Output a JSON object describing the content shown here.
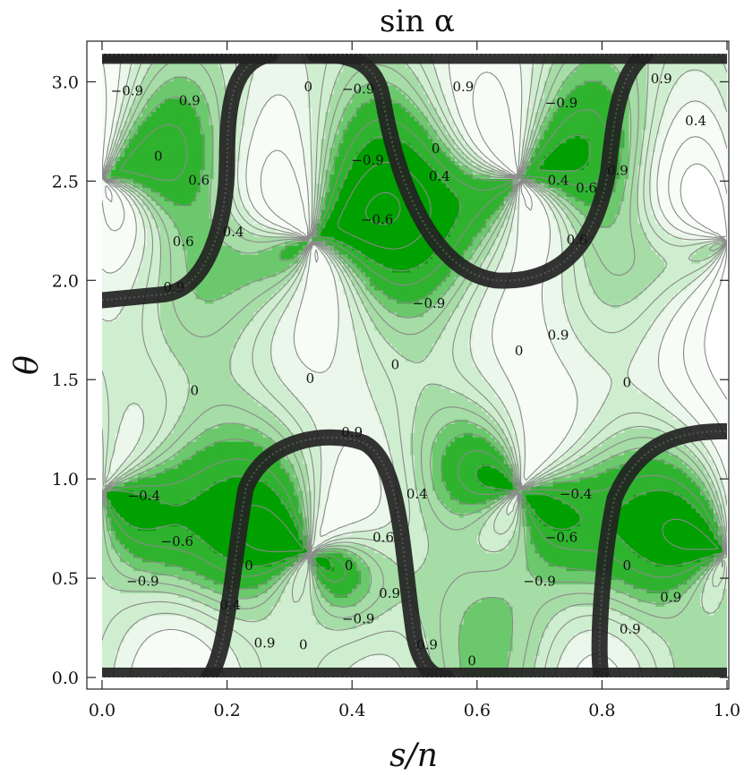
{
  "chart_data": {
    "type": "heatmap",
    "subtype": "contour",
    "title": "sin α",
    "xlabel": "s/n",
    "ylabel": "θ",
    "xlim": [
      0,
      1
    ],
    "ylim": [
      0,
      3.14159
    ],
    "x_ticks": [
      "0.0",
      "0.2",
      "0.4",
      "0.6",
      "0.8",
      "1.0"
    ],
    "y_ticks": [
      "0.0",
      "0.5",
      "1.0",
      "1.5",
      "2.0",
      "2.5",
      "3.0"
    ],
    "contour_levels": [
      -0.9,
      -0.6,
      -0.4,
      0,
      0.4,
      0.6,
      0.9
    ],
    "colors": {
      "most_negative": "#00a000",
      "negative": "#2fb32f",
      "mid_negative": "#6cc86c",
      "mid": "#a6dca6",
      "mid_positive": "#cfeecf",
      "positive": "#eaf7ea",
      "most_positive": "#f7fcf7",
      "singular_band": "#222222",
      "contour_line": "#8a8a8a"
    },
    "singular_points": [
      {
        "x": 0.0,
        "y": 0.94
      },
      {
        "x": 0.0,
        "y": 2.51
      },
      {
        "x": 0.333,
        "y": 0.62
      },
      {
        "x": 0.333,
        "y": 2.2
      },
      {
        "x": 0.667,
        "y": 0.94
      },
      {
        "x": 0.667,
        "y": 2.51
      },
      {
        "x": 1.0,
        "y": 0.62
      },
      {
        "x": 1.0,
        "y": 2.2
      }
    ],
    "contour_labels": [
      {
        "text": "−0.9",
        "x": 0.04,
        "y": 2.95
      },
      {
        "text": "0.9",
        "x": 0.14,
        "y": 2.9
      },
      {
        "text": "0",
        "x": 0.33,
        "y": 2.97
      },
      {
        "text": "−0.9",
        "x": 0.41,
        "y": 2.96
      },
      {
        "text": "0.9",
        "x": 0.578,
        "y": 2.97
      },
      {
        "text": "−0.9",
        "x": 0.735,
        "y": 2.89
      },
      {
        "text": "0.9",
        "x": 0.895,
        "y": 3.01
      },
      {
        "text": "0.4",
        "x": 0.95,
        "y": 2.8
      },
      {
        "text": "0",
        "x": 0.09,
        "y": 2.62
      },
      {
        "text": "0",
        "x": 0.534,
        "y": 2.66
      },
      {
        "text": "−0.9",
        "x": 0.425,
        "y": 2.6
      },
      {
        "text": "0.4",
        "x": 0.54,
        "y": 2.52
      },
      {
        "text": "0.6",
        "x": 0.155,
        "y": 2.5
      },
      {
        "text": "0.4",
        "x": 0.73,
        "y": 2.5
      },
      {
        "text": "0.9",
        "x": 0.825,
        "y": 2.55
      },
      {
        "text": "0.6",
        "x": 0.775,
        "y": 2.46
      },
      {
        "text": "−0.6",
        "x": 0.44,
        "y": 2.3
      },
      {
        "text": "0.6",
        "x": 0.13,
        "y": 2.19
      },
      {
        "text": "0.4",
        "x": 0.21,
        "y": 2.24
      },
      {
        "text": "0.6",
        "x": 0.76,
        "y": 2.2
      },
      {
        "text": "0.9",
        "x": 0.115,
        "y": 1.96
      },
      {
        "text": "−0.9",
        "x": 0.523,
        "y": 1.88
      },
      {
        "text": "0.9",
        "x": 0.73,
        "y": 1.72
      },
      {
        "text": "0",
        "x": 0.667,
        "y": 1.64
      },
      {
        "text": "0",
        "x": 0.469,
        "y": 1.57
      },
      {
        "text": "0",
        "x": 0.333,
        "y": 1.5
      },
      {
        "text": "0",
        "x": 0.84,
        "y": 1.48
      },
      {
        "text": "0",
        "x": 0.148,
        "y": 1.44
      },
      {
        "text": "0.9",
        "x": 0.4,
        "y": 1.23
      },
      {
        "text": "−0.4",
        "x": 0.067,
        "y": 0.91
      },
      {
        "text": "0.4",
        "x": 0.504,
        "y": 0.92
      },
      {
        "text": "−0.4",
        "x": 0.758,
        "y": 0.92
      },
      {
        "text": "−0.6",
        "x": 0.12,
        "y": 0.68
      },
      {
        "text": "0.6",
        "x": 0.45,
        "y": 0.7
      },
      {
        "text": "−0.6",
        "x": 0.735,
        "y": 0.7
      },
      {
        "text": "0",
        "x": 0.235,
        "y": 0.56
      },
      {
        "text": "0",
        "x": 0.395,
        "y": 0.56
      },
      {
        "text": "0",
        "x": 0.84,
        "y": 0.56
      },
      {
        "text": "−0.9",
        "x": 0.065,
        "y": 0.48
      },
      {
        "text": "0.9",
        "x": 0.46,
        "y": 0.42
      },
      {
        "text": "−0.9",
        "x": 0.7,
        "y": 0.48
      },
      {
        "text": "0.4",
        "x": 0.205,
        "y": 0.36
      },
      {
        "text": "0.9",
        "x": 0.91,
        "y": 0.4
      },
      {
        "text": "−0.9",
        "x": 0.41,
        "y": 0.29
      },
      {
        "text": "0.9",
        "x": 0.26,
        "y": 0.17
      },
      {
        "text": "0",
        "x": 0.322,
        "y": 0.16
      },
      {
        "text": "0.9",
        "x": 0.52,
        "y": 0.16
      },
      {
        "text": "0.9",
        "x": 0.845,
        "y": 0.24
      },
      {
        "text": "0",
        "x": 0.592,
        "y": 0.08
      }
    ]
  }
}
